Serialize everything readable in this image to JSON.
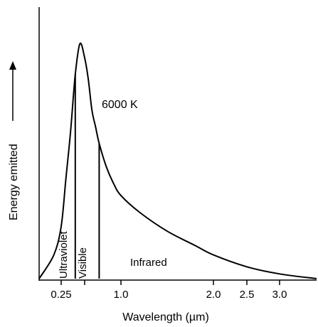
{
  "chart_data": {
    "type": "line",
    "series_label": "6000 K",
    "xlabel": "Wavelength (µm)",
    "ylabel": "Energy emitted",
    "ylabel_arrow": "→",
    "xlim": [
      0.1,
      3.5
    ],
    "ylim": [
      0,
      1.0
    ],
    "x_ticks": [
      {
        "value": 0.25,
        "label": "0.25"
      },
      {
        "value": 0.5,
        "label": ""
      },
      {
        "value": 1.0,
        "label": "1.0"
      },
      {
        "value": 2.0,
        "label": "2.0"
      },
      {
        "value": 2.5,
        "label": "2.5"
      },
      {
        "value": 3.0,
        "label": "3.0"
      }
    ],
    "curve": {
      "x": [
        0.1,
        0.2,
        0.25,
        0.3,
        0.35,
        0.4,
        0.45,
        0.5,
        0.55,
        0.6,
        0.65,
        0.7,
        0.8,
        0.9,
        1.0,
        1.2,
        1.5,
        1.8,
        2.0,
        2.5,
        3.0,
        3.5
      ],
      "y": [
        0.0,
        0.1,
        0.22,
        0.42,
        0.62,
        0.86,
        0.99,
        0.93,
        0.84,
        0.71,
        0.64,
        0.57,
        0.47,
        0.4,
        0.35,
        0.28,
        0.2,
        0.14,
        0.1,
        0.05,
        0.02,
        0.0
      ]
    },
    "regions": [
      {
        "label": "Ultraviolet",
        "boundary_right": 0.4
      },
      {
        "label": "Visible",
        "boundary_left": 0.4,
        "boundary_right": 0.7
      },
      {
        "label": "Infrared",
        "boundary_left": 0.7
      }
    ],
    "grid": false,
    "legend": "none"
  }
}
